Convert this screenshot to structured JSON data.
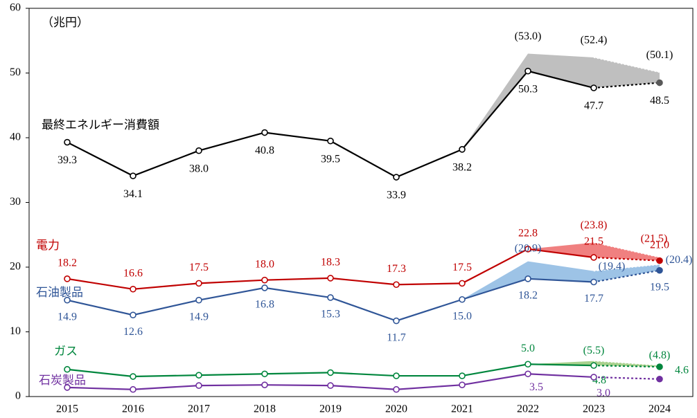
{
  "chart_data": {
    "type": "line",
    "unit_label": "（兆円）",
    "categories": [
      "2015",
      "2016",
      "2017",
      "2018",
      "2019",
      "2020",
      "2021",
      "2022",
      "2023",
      "2024"
    ],
    "ylim": [
      0,
      60
    ],
    "yticks": [
      0,
      10,
      20,
      30,
      40,
      50,
      60
    ],
    "grid": false,
    "dotted_last_segment": true,
    "series": [
      {
        "name": "最終エネルギー消費額",
        "color": "#000000",
        "band_color": "#bfbfbf",
        "values": [
          39.3,
          34.1,
          38.0,
          40.8,
          39.5,
          33.9,
          38.2,
          50.3,
          47.7,
          48.5
        ],
        "value_labels": [
          "39.3",
          "34.1",
          "38.0",
          "40.8",
          "39.5",
          "33.9",
          "38.2",
          "50.3",
          "47.7",
          "48.5"
        ],
        "upper": {
          "values": [
            null,
            null,
            null,
            null,
            null,
            null,
            38.2,
            53.0,
            52.4,
            50.1
          ],
          "value_labels": [
            null,
            null,
            null,
            null,
            null,
            null,
            null,
            "(53.0)",
            "(52.4)",
            "(50.1)"
          ]
        }
      },
      {
        "name": "電力",
        "color": "#c00000",
        "band_color": "#f08080",
        "values": [
          18.2,
          16.6,
          17.5,
          18.0,
          18.3,
          17.3,
          17.5,
          22.8,
          21.5,
          21.0
        ],
        "value_labels": [
          "18.2",
          "16.6",
          "17.5",
          "18.0",
          "18.3",
          "17.3",
          "17.5",
          "22.8",
          "21.5",
          "21.0"
        ],
        "upper": {
          "values": [
            null,
            null,
            null,
            null,
            null,
            null,
            null,
            22.8,
            23.8,
            21.5
          ],
          "value_labels": [
            null,
            null,
            null,
            null,
            null,
            null,
            null,
            null,
            "(23.8)",
            "(21.5)"
          ]
        }
      },
      {
        "name": "石油製品",
        "color": "#2f5597",
        "band_color": "#9dc3e6",
        "values": [
          14.9,
          12.6,
          14.9,
          16.8,
          15.3,
          11.7,
          15.0,
          18.2,
          17.7,
          19.5
        ],
        "value_labels": [
          "14.9",
          "12.6",
          "14.9",
          "16.8",
          "15.3",
          "11.7",
          "15.0",
          "18.2",
          "17.7",
          "19.5"
        ],
        "upper": {
          "values": [
            null,
            null,
            null,
            null,
            null,
            null,
            15.0,
            20.9,
            19.4,
            20.4
          ],
          "value_labels": [
            null,
            null,
            null,
            null,
            null,
            null,
            null,
            "(20.9)",
            "(19.4)",
            "(20.4)"
          ]
        }
      },
      {
        "name": "ガス",
        "color": "#00863d",
        "band_color": "#a9d18e",
        "values": [
          4.2,
          3.1,
          3.3,
          3.5,
          3.7,
          3.2,
          3.2,
          5.0,
          4.8,
          4.6
        ],
        "value_labels": [
          null,
          null,
          null,
          null,
          null,
          null,
          null,
          "5.0",
          "4.8",
          "4.6"
        ],
        "upper": {
          "values": [
            null,
            null,
            null,
            null,
            null,
            null,
            null,
            5.0,
            5.5,
            4.8
          ],
          "value_labels": [
            null,
            null,
            null,
            null,
            null,
            null,
            null,
            null,
            "(5.5)",
            "(4.8)"
          ]
        }
      },
      {
        "name": "石炭製品",
        "color": "#7030a0",
        "band_color": "#c9a6e0",
        "values": [
          1.4,
          1.1,
          1.7,
          1.8,
          1.7,
          1.1,
          1.8,
          3.5,
          3.0,
          2.7
        ],
        "value_labels": [
          null,
          null,
          null,
          null,
          null,
          null,
          null,
          "3.5",
          "3.0",
          null
        ]
      }
    ]
  }
}
